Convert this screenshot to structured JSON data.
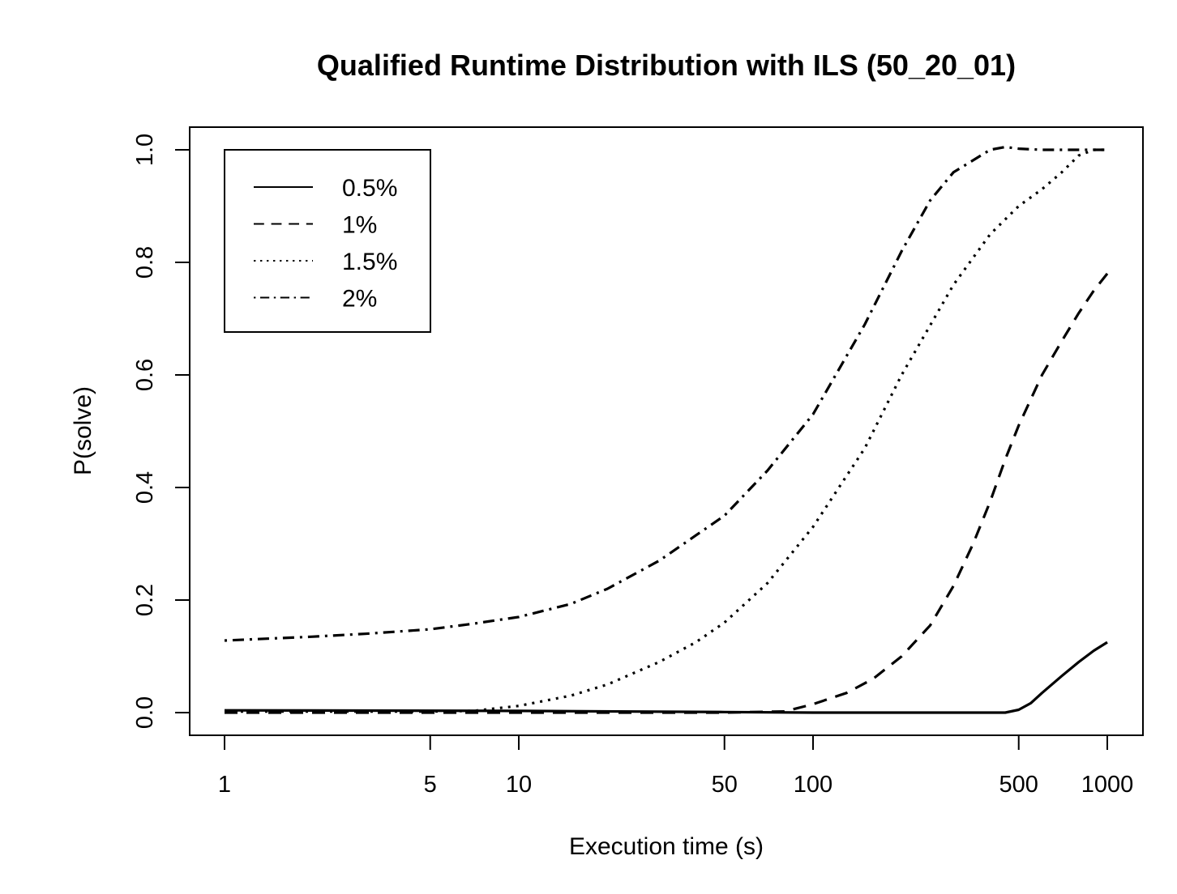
{
  "chart_data": {
    "type": "line",
    "title": "Qualified Runtime Distribution with ILS (50_20_01)",
    "xlabel": "Execution time (s)",
    "ylabel": "P(solve)",
    "x_scale": "log",
    "xlim": [
      1,
      1000
    ],
    "ylim": [
      0,
      1
    ],
    "x_ticks": [
      1,
      5,
      10,
      50,
      100,
      500,
      1000
    ],
    "x_tick_labels": [
      "1",
      "5",
      "10",
      "50",
      "100",
      "500",
      "1000"
    ],
    "y_ticks": [
      0,
      0.2,
      0.4,
      0.6,
      0.8,
      1.0
    ],
    "y_tick_labels": [
      "0.0",
      "0.2",
      "0.4",
      "0.6",
      "0.8",
      "1.0"
    ],
    "grid": false,
    "legend_position": "top-left",
    "series": [
      {
        "name": "0.5%",
        "line_style": "solid",
        "points": [
          [
            1,
            0.004
          ],
          [
            10,
            0.003
          ],
          [
            50,
            0.001
          ],
          [
            100,
            0.0
          ],
          [
            200,
            0.0
          ],
          [
            300,
            0.0
          ],
          [
            450,
            0.0
          ],
          [
            500,
            0.005
          ],
          [
            550,
            0.017
          ],
          [
            600,
            0.035
          ],
          [
            700,
            0.065
          ],
          [
            800,
            0.09
          ],
          [
            900,
            0.11
          ],
          [
            1000,
            0.125
          ]
        ]
      },
      {
        "name": "1%",
        "line_style": "dashed",
        "points": [
          [
            1,
            0.0
          ],
          [
            10,
            0.0
          ],
          [
            50,
            0.0
          ],
          [
            80,
            0.002
          ],
          [
            100,
            0.015
          ],
          [
            130,
            0.035
          ],
          [
            160,
            0.06
          ],
          [
            200,
            0.1
          ],
          [
            250,
            0.155
          ],
          [
            300,
            0.225
          ],
          [
            350,
            0.3
          ],
          [
            400,
            0.375
          ],
          [
            450,
            0.45
          ],
          [
            500,
            0.51
          ],
          [
            600,
            0.6
          ],
          [
            700,
            0.66
          ],
          [
            800,
            0.71
          ],
          [
            900,
            0.75
          ],
          [
            1000,
            0.78
          ]
        ]
      },
      {
        "name": "1.5%",
        "line_style": "dotted",
        "points": [
          [
            1,
            0.002
          ],
          [
            5,
            0.002
          ],
          [
            7,
            0.003
          ],
          [
            10,
            0.012
          ],
          [
            15,
            0.03
          ],
          [
            20,
            0.05
          ],
          [
            30,
            0.09
          ],
          [
            40,
            0.125
          ],
          [
            50,
            0.16
          ],
          [
            70,
            0.23
          ],
          [
            100,
            0.33
          ],
          [
            150,
            0.47
          ],
          [
            200,
            0.6
          ],
          [
            300,
            0.76
          ],
          [
            400,
            0.85
          ],
          [
            500,
            0.9
          ],
          [
            600,
            0.93
          ],
          [
            700,
            0.96
          ],
          [
            800,
            0.99
          ],
          [
            900,
            1.0
          ],
          [
            1000,
            1.0
          ]
        ]
      },
      {
        "name": "2%",
        "line_style": "dotdash",
        "points": [
          [
            1,
            0.128
          ],
          [
            2,
            0.135
          ],
          [
            3,
            0.14
          ],
          [
            5,
            0.148
          ],
          [
            7,
            0.158
          ],
          [
            10,
            0.17
          ],
          [
            15,
            0.193
          ],
          [
            20,
            0.22
          ],
          [
            30,
            0.27
          ],
          [
            40,
            0.315
          ],
          [
            50,
            0.35
          ],
          [
            70,
            0.43
          ],
          [
            100,
            0.53
          ],
          [
            150,
            0.69
          ],
          [
            200,
            0.82
          ],
          [
            250,
            0.91
          ],
          [
            300,
            0.96
          ],
          [
            400,
            1.0
          ],
          [
            450,
            1.005
          ],
          [
            500,
            1.002
          ],
          [
            600,
            1.0
          ],
          [
            800,
            1.0
          ],
          [
            1000,
            1.0
          ]
        ]
      }
    ]
  }
}
